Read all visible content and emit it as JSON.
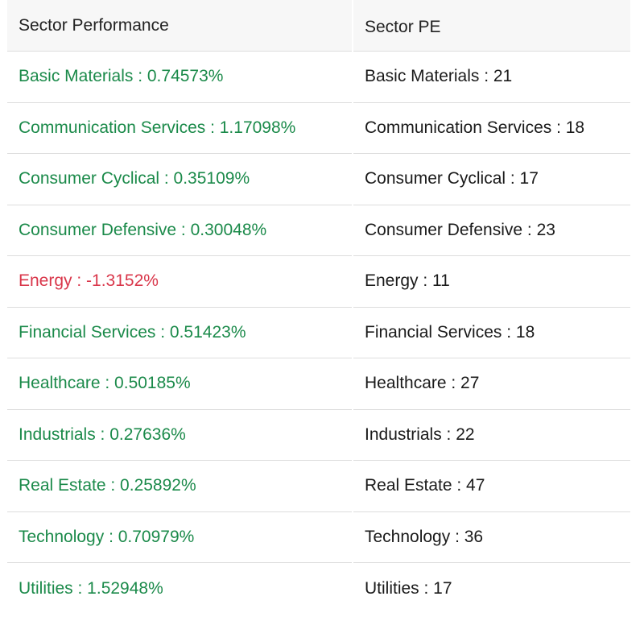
{
  "performance": {
    "header": "Sector Performance",
    "rows": [
      {
        "text": "Basic Materials : 0.74573%",
        "trend": "positive"
      },
      {
        "text": "Communication Services : 1.17098%",
        "trend": "positive"
      },
      {
        "text": "Consumer Cyclical : 0.35109%",
        "trend": "positive"
      },
      {
        "text": "Consumer Defensive : 0.30048%",
        "trend": "positive"
      },
      {
        "text": "Energy : -1.3152%",
        "trend": "negative"
      },
      {
        "text": "Financial Services : 0.51423%",
        "trend": "positive"
      },
      {
        "text": "Healthcare : 0.50185%",
        "trend": "positive"
      },
      {
        "text": "Industrials : 0.27636%",
        "trend": "positive"
      },
      {
        "text": "Real Estate : 0.25892%",
        "trend": "positive"
      },
      {
        "text": "Technology : 0.70979%",
        "trend": "positive"
      },
      {
        "text": "Utilities : 1.52948%",
        "trend": "positive"
      }
    ]
  },
  "pe": {
    "header": "Sector PE",
    "rows": [
      "Basic Materials : 21",
      "Communication Services : 18",
      "Consumer Cyclical : 17",
      "Consumer Defensive : 23",
      "Energy : 11",
      "Financial Services : 18",
      "Healthcare : 27",
      "Industrials : 22",
      "Real Estate : 47",
      "Technology : 36",
      "Utilities : 17"
    ]
  },
  "colors": {
    "positive": "#1b8a4a",
    "negative": "#d9364a",
    "header_bg": "#f7f7f7",
    "divider": "#dddddd"
  }
}
